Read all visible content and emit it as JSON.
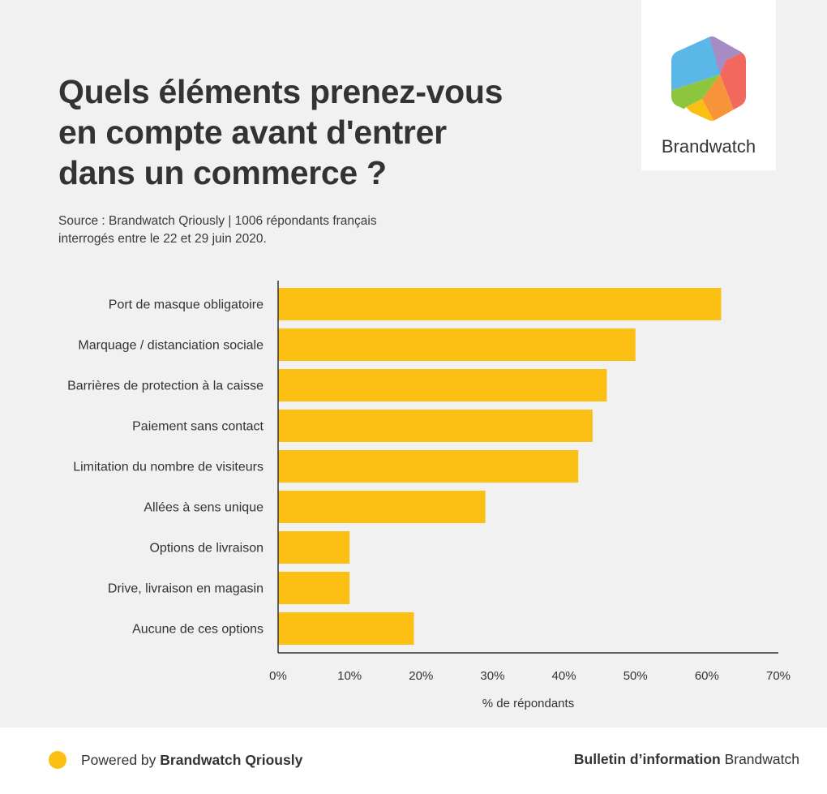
{
  "title_lines": [
    "Quels éléments prenez-vous",
    "en compte avant d'entrer",
    "dans un commerce ?"
  ],
  "source_lines": [
    "Source : Brandwatch Qriously | 1006 répondants français",
    "interrogés entre le 22 et 29 juin 2020."
  ],
  "logo": {
    "text": "Brandwatch"
  },
  "colors": {
    "bar": "#fbbe12",
    "background": "#f1f1f1",
    "axis": "#333333",
    "logo_segments": [
      "#5bb7e5",
      "#a78bc3",
      "#f2675e",
      "#f7943a",
      "#fbbe12",
      "#8cc63e"
    ]
  },
  "chart_data": {
    "type": "bar",
    "orientation": "horizontal",
    "categories": [
      "Port de masque obligatoire",
      "Marquage / distanciation sociale",
      "Barrières de protection à la caisse",
      "Paiement sans contact",
      "Limitation du nombre de visiteurs",
      "Allées à sens unique",
      "Options de livraison",
      "Drive, livraison en magasin",
      "Aucune de ces options"
    ],
    "values": [
      62,
      50,
      46,
      44,
      42,
      29,
      10,
      10,
      19
    ],
    "xlabel": "% de répondants",
    "ylabel": "",
    "xlim": [
      0,
      70
    ],
    "ticks": [
      0,
      10,
      20,
      30,
      40,
      50,
      60,
      70
    ],
    "tick_labels": [
      "0%",
      "10%",
      "20%",
      "30%",
      "40%",
      "50%",
      "60%",
      "70%"
    ],
    "grid": false,
    "legend": "none"
  },
  "footer": {
    "left_prefix": "Powered by",
    "left_brand": "Brandwatch Qriously",
    "right_bold": "Bulletin d’information",
    "right_normal": "Brandwatch"
  }
}
